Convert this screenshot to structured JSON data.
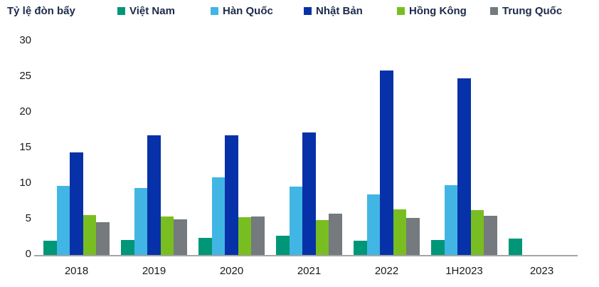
{
  "chart": {
    "title": "Tỷ lệ đòn bẩy",
    "legend_items": [
      "Việt Nam",
      "Hàn Quốc",
      "Nhật Bản",
      "Hồng Kông",
      "Trung Quốc"
    ]
  },
  "colors": {
    "viet_nam": "#009778",
    "han_quoc": "#41B6E4",
    "nhat_ban": "#0631A8",
    "hong_kong": "#79BE21",
    "trung_quoc": "#747A7D",
    "axis_line": "#A6A6A6",
    "header_text": "#1C2B4A",
    "axis_text": "#1A1A1A"
  },
  "chart_data": {
    "type": "bar",
    "title": "Tỷ lệ đòn bẩy",
    "xlabel": "",
    "ylabel": "",
    "categories": [
      "2018",
      "2019",
      "2020",
      "2021",
      "2022",
      "1H2023",
      "2023"
    ],
    "series": [
      {
        "name": "Việt Nam",
        "color": "#009778",
        "values": [
          2.0,
          2.1,
          2.4,
          2.7,
          2.0,
          2.1,
          2.3
        ]
      },
      {
        "name": "Hàn Quốc",
        "color": "#41B6E4",
        "values": [
          9.7,
          9.4,
          10.9,
          9.6,
          8.5,
          9.8,
          null
        ]
      },
      {
        "name": "Nhật Bản",
        "color": "#0631A8",
        "values": [
          14.4,
          16.8,
          16.8,
          17.2,
          25.9,
          24.8,
          null
        ]
      },
      {
        "name": "Hồng Kông",
        "color": "#79BE21",
        "values": [
          5.6,
          5.4,
          5.3,
          4.9,
          6.4,
          6.3,
          null
        ]
      },
      {
        "name": "Trung Quốc",
        "color": "#747A7D",
        "values": [
          4.6,
          5.0,
          5.4,
          5.8,
          5.2,
          5.5,
          null
        ]
      }
    ],
    "ylim": [
      0,
      30
    ],
    "yticks": [
      0,
      5,
      10,
      15,
      20,
      25,
      30
    ],
    "grid": false,
    "legend_position": "top"
  }
}
